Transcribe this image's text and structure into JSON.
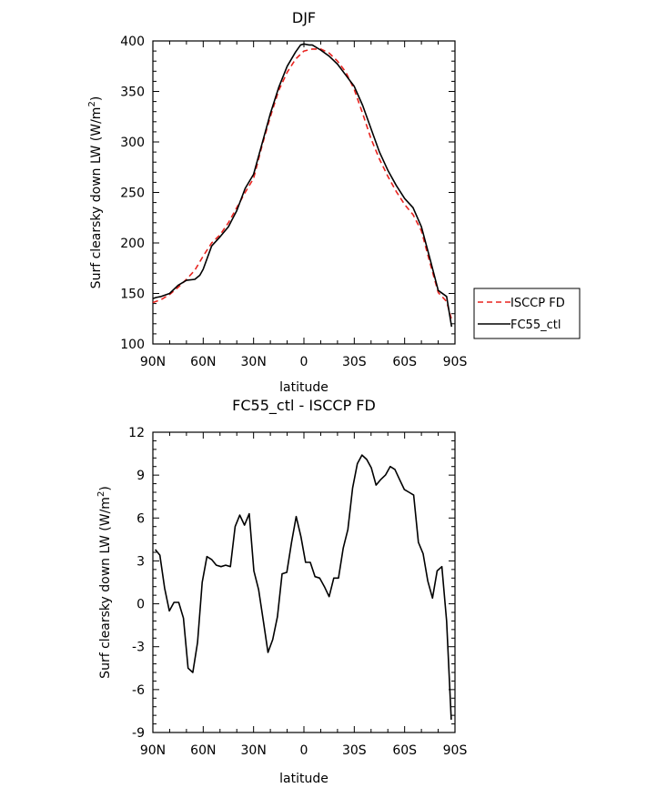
{
  "chart_data": [
    {
      "type": "line",
      "title": "DJF",
      "xlabel": "latitude",
      "ylabel": "Surf clearsky down LW (W/m²)",
      "ylabel_parts": {
        "main": "Surf clearsky down LW (W/m",
        "sup": "2",
        "end": ")"
      },
      "xlim": [
        90,
        -90
      ],
      "ylim": [
        100,
        400
      ],
      "x_ticks": [
        90,
        60,
        30,
        0,
        -30,
        -60,
        -90
      ],
      "x_tick_labels": [
        "90N",
        "60N",
        "30N",
        "0",
        "30S",
        "60S",
        "90S"
      ],
      "y_ticks": [
        100,
        150,
        200,
        250,
        300,
        350,
        400
      ],
      "y_tick_labels": [
        "100",
        "150",
        "200",
        "250",
        "300",
        "350",
        "400"
      ],
      "legend_position": "right",
      "series": [
        {
          "name": "ISCCP FD",
          "color": "#e8231f",
          "style": "dashed",
          "x": [
            90,
            85,
            80,
            75,
            70,
            65,
            60,
            55,
            50,
            45,
            40,
            35,
            30,
            25,
            20,
            15,
            10,
            5,
            0,
            -5,
            -10,
            -15,
            -20,
            -25,
            -30,
            -35,
            -40,
            -45,
            -50,
            -55,
            -60,
            -65,
            -70,
            -75,
            -80,
            -85,
            -88
          ],
          "y": [
            141,
            144,
            149,
            156,
            164,
            173,
            187,
            200,
            208,
            220,
            235,
            250,
            264,
            296,
            325,
            351,
            369,
            382,
            390,
            392,
            392,
            388,
            380,
            369,
            352,
            328,
            303,
            283,
            266,
            251,
            238,
            228,
            212,
            181,
            151,
            142,
            124
          ]
        },
        {
          "name": "FC55_ctl",
          "color": "#000000",
          "style": "solid",
          "x": [
            90,
            88,
            85,
            80,
            75,
            70,
            65,
            62,
            60,
            55,
            50,
            45,
            40,
            35,
            30,
            25,
            20,
            15,
            10,
            5,
            2,
            0,
            -3,
            -5,
            -10,
            -15,
            -20,
            -25,
            -30,
            -35,
            -40,
            -45,
            -50,
            -55,
            -60,
            -65,
            -70,
            -75,
            -80,
            -85,
            -88
          ],
          "y": [
            145,
            146,
            147,
            150,
            158,
            163,
            164,
            168,
            174,
            197,
            206,
            216,
            232,
            254,
            268,
            298,
            328,
            354,
            375,
            389,
            396,
            397,
            396,
            396,
            391,
            385,
            377,
            366,
            355,
            336,
            313,
            290,
            272,
            257,
            244,
            235,
            216,
            185,
            153,
            147,
            117
          ]
        }
      ]
    },
    {
      "type": "line",
      "title": "FC55_ctl - ISCCP FD",
      "xlabel": "latitude",
      "ylabel": "Surf clearsky down LW (W/m²)",
      "ylabel_parts": {
        "main": "Surf clearsky down LW (W/m",
        "sup": "2",
        "end": ")"
      },
      "xlim": [
        90,
        -90
      ],
      "ylim": [
        -9,
        12
      ],
      "x_ticks": [
        90,
        60,
        30,
        0,
        -30,
        -60,
        -90
      ],
      "x_tick_labels": [
        "90N",
        "60N",
        "30N",
        "0",
        "30S",
        "60S",
        "90S"
      ],
      "y_ticks": [
        -9,
        -6,
        -3,
        0,
        3,
        6,
        9,
        12
      ],
      "y_tick_labels": [
        "-9",
        "-6",
        "-3",
        "0",
        "3",
        "6",
        "9",
        "12"
      ],
      "series": [
        {
          "name": "",
          "color": "#000000",
          "style": "solid",
          "x": [
            88.6,
            85.8,
            83.0,
            80.2,
            77.4,
            74.6,
            71.8,
            69.0,
            66.2,
            63.4,
            60.6,
            57.8,
            55.0,
            52.2,
            49.4,
            46.6,
            43.8,
            41.0,
            38.2,
            35.4,
            32.6,
            29.8,
            27.0,
            24.2,
            21.4,
            18.6,
            15.8,
            13.0,
            10.2,
            7.4,
            4.6,
            1.8,
            -1.0,
            -3.8,
            -6.6,
            -9.4,
            -12.2,
            -15.0,
            -17.8,
            -20.6,
            -23.4,
            -26.2,
            -29.0,
            -31.8,
            -34.6,
            -37.4,
            -40.2,
            -43.0,
            -45.8,
            -48.6,
            -51.4,
            -54.2,
            -57.0,
            -59.8,
            -62.6,
            -65.4,
            -68.2,
            -71.0,
            -73.8,
            -76.6,
            -79.4,
            -82.2,
            -85.0,
            -87.8
          ],
          "y": [
            3.8,
            3.4,
            1.1,
            -0.5,
            0.1,
            0.1,
            -1.0,
            -4.5,
            -4.8,
            -2.7,
            1.5,
            3.3,
            3.1,
            2.7,
            2.6,
            2.7,
            2.6,
            5.4,
            6.2,
            5.5,
            6.3,
            2.3,
            1.0,
            -1.2,
            -3.4,
            -2.5,
            -0.9,
            2.1,
            2.2,
            4.3,
            6.1,
            4.7,
            2.9,
            2.9,
            1.9,
            1.8,
            1.2,
            0.5,
            1.8,
            1.8,
            3.9,
            5.2,
            8.1,
            9.8,
            10.4,
            10.1,
            9.5,
            8.3,
            8.7,
            9.0,
            9.6,
            9.4,
            8.7,
            8.0,
            7.8,
            7.6,
            4.3,
            3.5,
            1.6,
            0.4,
            2.3,
            2.6,
            -1.2,
            -8.1
          ]
        }
      ]
    }
  ]
}
